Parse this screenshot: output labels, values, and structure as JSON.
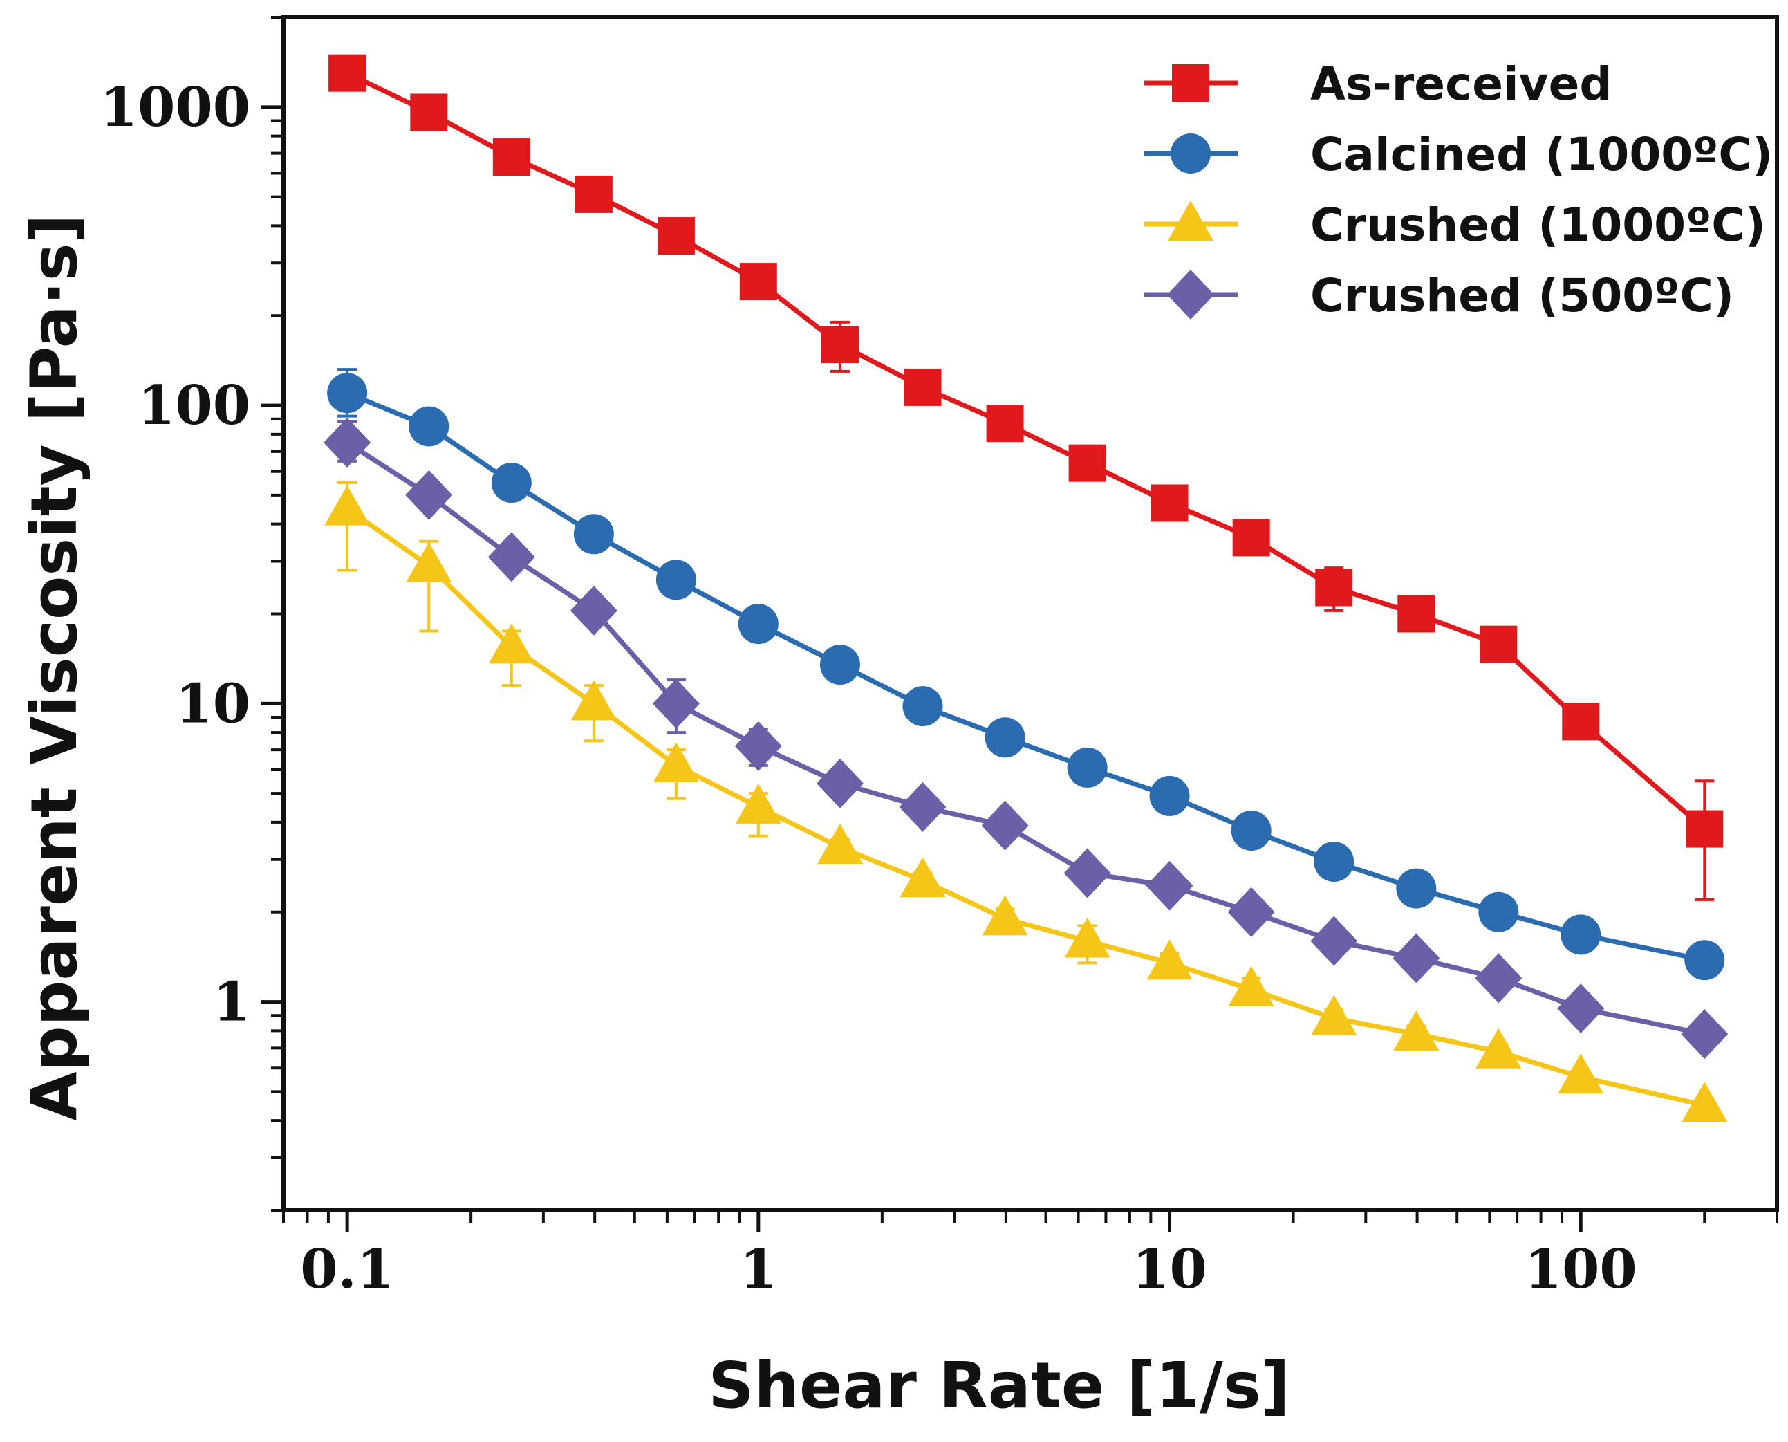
{
  "chart_data": {
    "type": "line",
    "title": "",
    "xlabel": "Shear Rate [1/s]",
    "ylabel": "Apparent Viscosity [Pa·s]",
    "xscale": "log",
    "yscale": "log",
    "xlim": [
      0.07,
      300
    ],
    "ylim": [
      0.2,
      2000
    ],
    "xticks": [
      0.1,
      1,
      10,
      100
    ],
    "xtick_labels": [
      "0.1",
      "1",
      "10",
      "100"
    ],
    "yticks": [
      1,
      10,
      100,
      1000
    ],
    "ytick_labels": [
      "1",
      "10",
      "100",
      "1000"
    ],
    "grid": false,
    "legend_position": "top-right",
    "x": [
      0.1,
      0.158,
      0.251,
      0.398,
      0.631,
      1,
      1.58,
      2.51,
      3.98,
      6.31,
      10,
      15.8,
      25.1,
      39.8,
      63.1,
      100,
      200
    ],
    "series": [
      {
        "name": "As-received",
        "color": "#e0191c",
        "marker": "square",
        "values": [
          1300,
          960,
          680,
          510,
          370,
          260,
          160,
          115,
          87,
          64,
          47,
          36,
          24.5,
          20,
          15.8,
          8.7,
          3.8
        ],
        "error_low": [
          1200,
          900,
          640,
          480,
          350,
          245,
          130,
          108,
          82,
          60,
          44,
          34,
          20.5,
          19,
          15,
          8.3,
          2.2
        ],
        "error_high": [
          1400,
          1020,
          720,
          540,
          390,
          275,
          190,
          122,
          92,
          68,
          50,
          38,
          28.5,
          21,
          16.6,
          9.1,
          5.5
        ]
      },
      {
        "name": "Calcined (1000ºC)",
        "color": "#2b6cb0",
        "marker": "circle",
        "values": [
          110,
          85,
          55,
          37,
          26,
          18.5,
          13.5,
          9.8,
          7.7,
          6.1,
          4.9,
          3.75,
          2.95,
          2.4,
          2.0,
          1.68,
          1.38
        ],
        "error_low": [
          92,
          75,
          51,
          35,
          24,
          17.5,
          13,
          9.5,
          7.5,
          6.0,
          4.8,
          3.65,
          2.9,
          2.35,
          1.95,
          1.65,
          1.36
        ],
        "error_high": [
          132,
          95,
          59,
          39,
          28,
          19.5,
          14,
          10.1,
          7.9,
          6.2,
          5.0,
          3.85,
          3.0,
          2.45,
          2.05,
          1.71,
          1.4
        ]
      },
      {
        "name": "Crushed (1000ºC)",
        "color": "#f5c518",
        "marker": "triangle",
        "values": [
          45,
          29,
          15.5,
          10,
          6.2,
          4.5,
          3.3,
          2.55,
          1.9,
          1.6,
          1.35,
          1.1,
          0.88,
          0.78,
          0.68,
          0.56,
          0.45
        ],
        "error_low": [
          28,
          17.5,
          11.5,
          7.5,
          4.8,
          3.6,
          3.1,
          2.4,
          1.75,
          1.35,
          1.25,
          1.0,
          0.82,
          0.73,
          0.64,
          0.53,
          0.43
        ],
        "error_high": [
          55,
          35,
          17.5,
          11.5,
          7.0,
          5.0,
          3.5,
          2.7,
          2.05,
          1.8,
          1.45,
          1.2,
          0.94,
          0.83,
          0.72,
          0.59,
          0.47
        ]
      },
      {
        "name": "Crushed (500ºC)",
        "color": "#6b5fa8",
        "marker": "diamond",
        "values": [
          75,
          50,
          31,
          20.5,
          10,
          7.2,
          5.4,
          4.5,
          3.9,
          2.7,
          2.45,
          2.0,
          1.6,
          1.4,
          1.2,
          0.95,
          0.78
        ],
        "error_low": [
          65,
          45,
          28,
          19,
          8,
          6.2,
          5.1,
          4.3,
          3.7,
          2.55,
          2.3,
          1.9,
          1.55,
          1.35,
          1.15,
          0.92,
          0.76
        ],
        "error_high": [
          88,
          55,
          34,
          22,
          12,
          8.2,
          5.7,
          4.7,
          4.1,
          2.85,
          2.6,
          2.1,
          1.65,
          1.45,
          1.25,
          0.98,
          0.8
        ]
      }
    ]
  }
}
